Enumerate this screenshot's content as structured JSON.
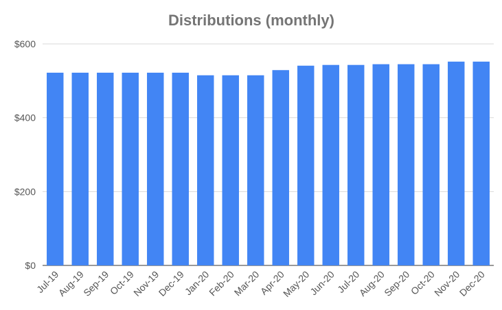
{
  "chart_data": {
    "type": "bar",
    "title": "Distributions (monthly)",
    "xlabel": "",
    "ylabel": "",
    "categories": [
      "Jul-19",
      "Aug-19",
      "Sep-19",
      "Oct-19",
      "Nov-19",
      "Dec-19",
      "Jan-20",
      "Feb-20",
      "Mar-20",
      "Apr-20",
      "May-20",
      "Jun-20",
      "Jul-20",
      "Aug-20",
      "Sep-20",
      "Oct-20",
      "Nov-20",
      "Dec-20"
    ],
    "values": [
      522,
      522,
      522,
      522,
      522,
      522,
      515,
      515,
      515,
      529,
      541,
      543,
      543,
      545,
      545,
      545,
      552,
      552
    ],
    "ylim": [
      0,
      600
    ],
    "yticks": [
      0,
      200,
      400,
      600
    ],
    "ytick_labels": [
      "$0",
      "$200",
      "$400",
      "$600"
    ],
    "grid": true,
    "legend": "none",
    "bar_color": "#4285f4"
  }
}
